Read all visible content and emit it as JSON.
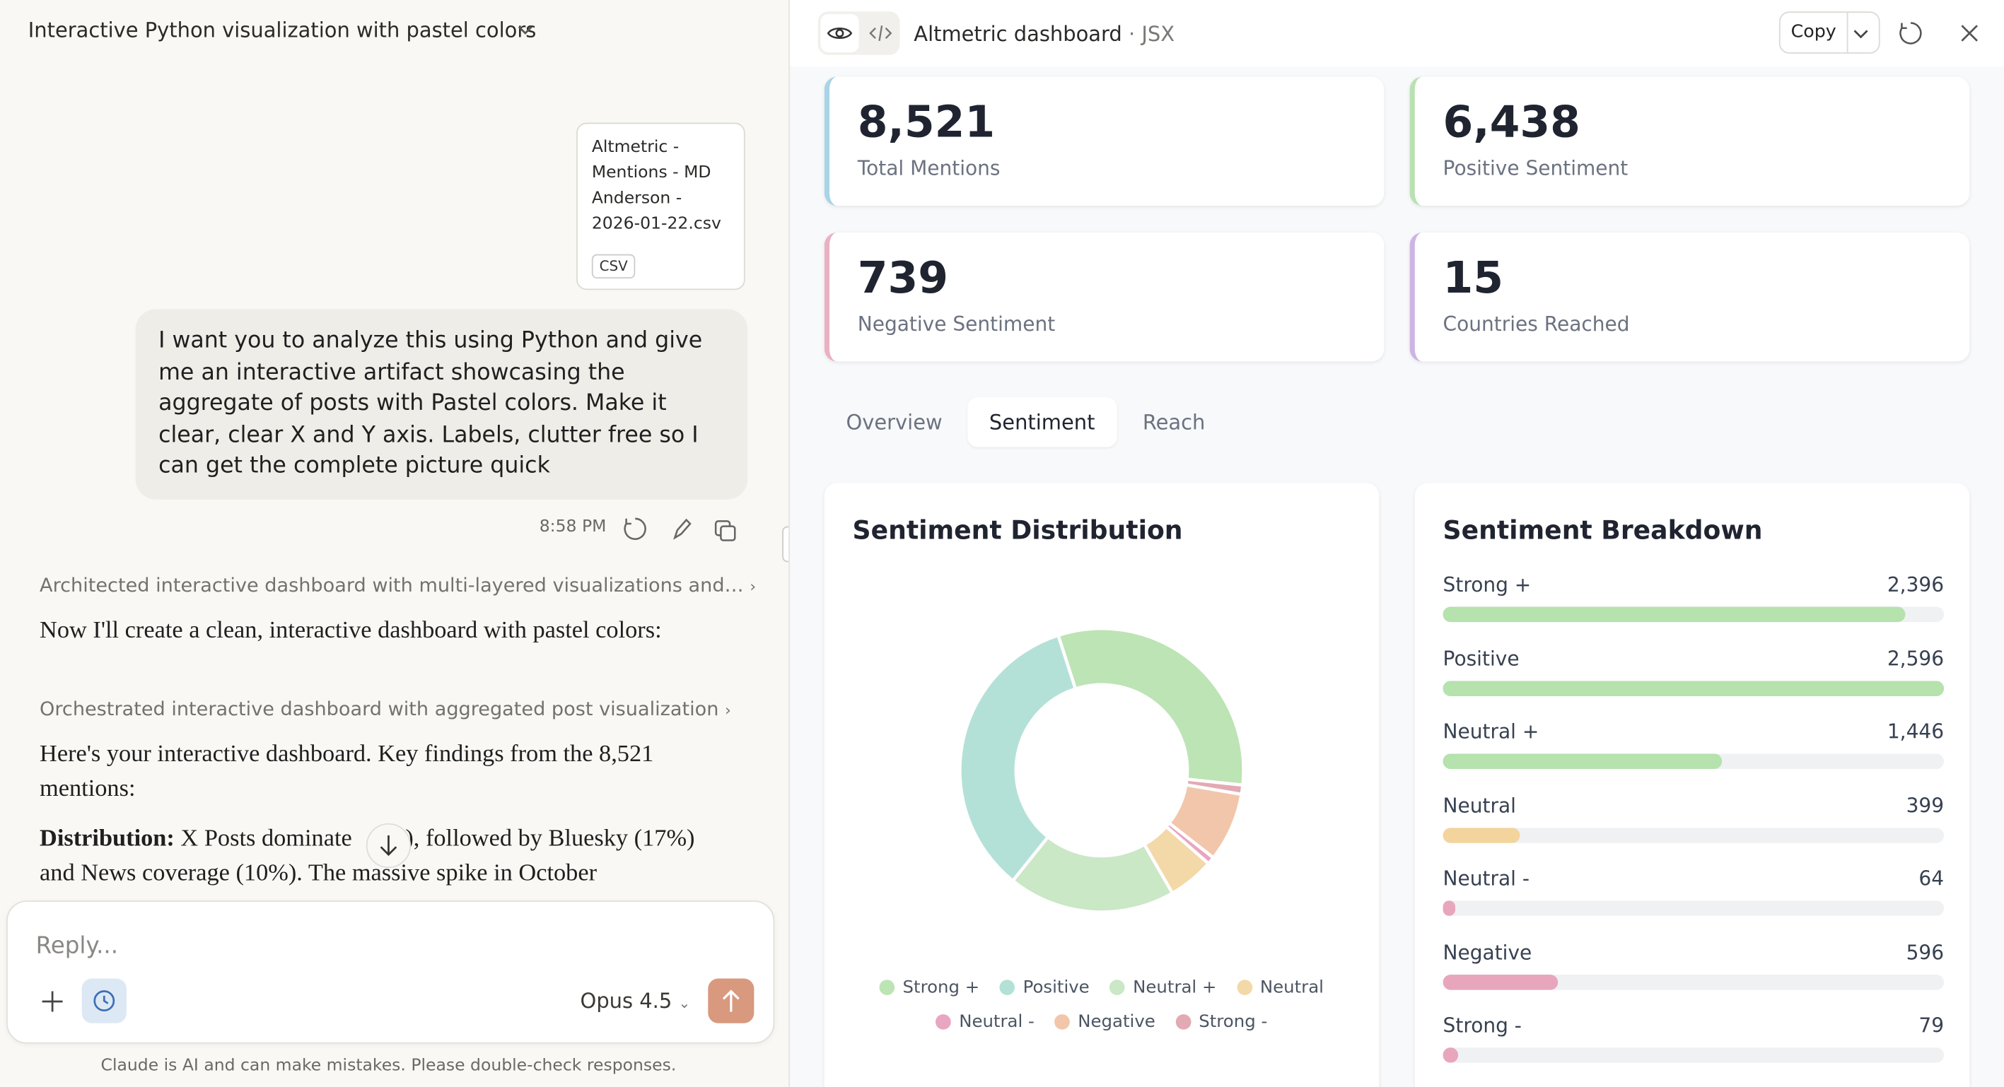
{
  "header": {
    "title": "Interactive Python visualization with pastel colors"
  },
  "attachment": {
    "name": "Altmetric - Mentions - MD Anderson - 2026-01-22.csv",
    "type": "CSV"
  },
  "user_message": {
    "text": "I want you to analyze this using Python and give me an interactive artifact showcasing the aggregate of posts with Pastel colors. Make it clear, clear X and Y axis. Labels, clutter free so I can get the complete picture quick",
    "time": "8:58 PM"
  },
  "assistant": {
    "thinking_1": "Architected interactive dashboard with multi-layered visualizations and…",
    "text_1": "Now I'll create a clean, interactive dashboard with pastel colors:",
    "thinking_2": "Orchestrated interactive dashboard with aggregated post visualization",
    "text_2": "Here's your interactive dashboard. Key findings from the 8,521 mentions:",
    "distribution_label": "Distribution:",
    "distribution_text_a": "X Posts dominate",
    "distribution_text_b": "%), followed by Bluesky (17%) and News coverage (10%). The massive spike in October"
  },
  "composer": {
    "placeholder": "Reply...",
    "model": "Opus 4.5",
    "disclaimer": "Claude is AI and can make mistakes. Please double-check responses."
  },
  "artifact": {
    "title": "Altmetric dashboard",
    "kind": "· JSX",
    "copy": "Copy",
    "stats": [
      {
        "value": "8,521",
        "label": "Total Mentions"
      },
      {
        "value": "6,438",
        "label": "Positive Sentiment"
      },
      {
        "value": "739",
        "label": "Negative Sentiment"
      },
      {
        "value": "15",
        "label": "Countries Reached"
      }
    ],
    "tabs": [
      "Overview",
      "Sentiment",
      "Reach"
    ]
  },
  "chart_data": [
    {
      "type": "pie",
      "title": "Sentiment Distribution",
      "categories": [
        "Strong +",
        "Positive",
        "Neutral +",
        "Neutral",
        "Neutral -",
        "Negative",
        "Strong -"
      ],
      "values": [
        2396,
        2596,
        1446,
        399,
        64,
        596,
        79
      ],
      "colors": [
        "#bde4b4",
        "#b4e1d7",
        "#cae7c6",
        "#f3d8a8",
        "#e8a6c0",
        "#f2c6ab",
        "#e3aab4"
      ],
      "donut": true,
      "legend": "bottom"
    },
    {
      "type": "bar",
      "orientation": "horizontal",
      "title": "Sentiment Breakdown",
      "categories": [
        "Strong +",
        "Positive",
        "Neutral +",
        "Neutral",
        "Neutral -",
        "Negative",
        "Strong -"
      ],
      "values": [
        2396,
        2596,
        1446,
        399,
        64,
        596,
        79
      ],
      "value_labels": [
        "2,396",
        "2,596",
        "1,446",
        "399",
        "64",
        "596",
        "79"
      ],
      "colors": [
        "#b5e2ad",
        "#b5e2ad",
        "#b5e2ad",
        "#f3d49d",
        "#e8a6bd",
        "#e8a6bd",
        "#e8a6bd"
      ],
      "xlim": [
        0,
        2596
      ]
    }
  ]
}
